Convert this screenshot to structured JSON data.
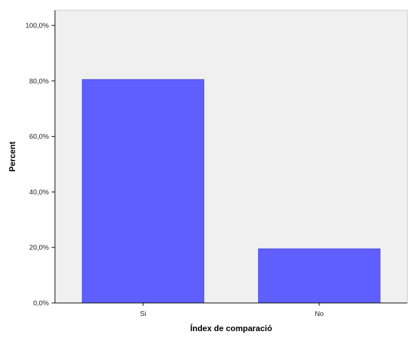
{
  "chart_data": {
    "type": "bar",
    "categories": [
      "Si",
      "No"
    ],
    "values": [
      80.5,
      19.5
    ],
    "xlabel": "Índex de comparació",
    "ylabel": "Percent",
    "ylim": [
      0,
      100
    ],
    "yticks": [
      0,
      20,
      40,
      60,
      80,
      100
    ],
    "ytick_labels": [
      "0,0%",
      "20,0%",
      "40,0%",
      "60,0%",
      "80,0%",
      "100,0%"
    ],
    "grid": false,
    "legend": "none",
    "colors": {
      "bar": "#5f5fff",
      "bar_edge": "#4a4ad8",
      "plot_background": "#f0f0f0",
      "axis": "#000000"
    }
  }
}
